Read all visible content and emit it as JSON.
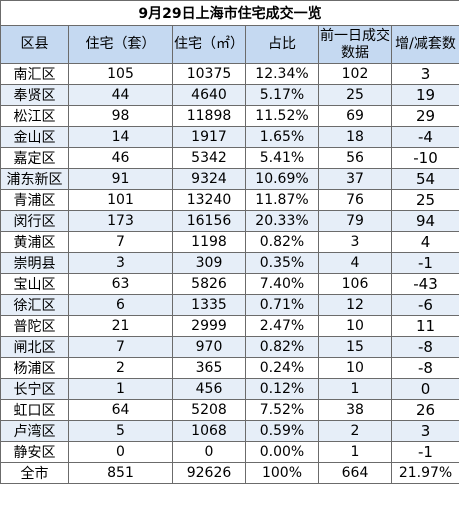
{
  "title": "9月29日上海市住宅成交一览",
  "headers": [
    "区县",
    "住宅（套）",
    "住宅（㎡）",
    "占比",
    "前一日成交数据",
    "增/减套数"
  ],
  "rows": [
    [
      "南汇区",
      "105",
      "10375",
      "12.34%",
      "102",
      "3"
    ],
    [
      "奉贤区",
      "44",
      "4640",
      "5.17%",
      "25",
      "19"
    ],
    [
      "松江区",
      "98",
      "11898",
      "11.52%",
      "69",
      "29"
    ],
    [
      "金山区",
      "14",
      "1917",
      "1.65%",
      "18",
      "-4"
    ],
    [
      "嘉定区",
      "46",
      "5342",
      "5.41%",
      "56",
      "-10"
    ],
    [
      "浦东新区",
      "91",
      "9324",
      "10.69%",
      "37",
      "54"
    ],
    [
      "青浦区",
      "101",
      "13240",
      "11.87%",
      "76",
      "25"
    ],
    [
      "闵行区",
      "173",
      "16156",
      "20.33%",
      "79",
      "94"
    ],
    [
      "黄浦区",
      "7",
      "1198",
      "0.82%",
      "3",
      "4"
    ],
    [
      "崇明县",
      "3",
      "309",
      "0.35%",
      "4",
      "-1"
    ],
    [
      "宝山区",
      "63",
      "5826",
      "7.40%",
      "106",
      "-43"
    ],
    [
      "徐汇区",
      "6",
      "1335",
      "0.71%",
      "12",
      "-6"
    ],
    [
      "普陀区",
      "21",
      "2999",
      "2.47%",
      "10",
      "11"
    ],
    [
      "闸北区",
      "7",
      "970",
      "0.82%",
      "15",
      "-8"
    ],
    [
      "杨浦区",
      "2",
      "365",
      "0.24%",
      "10",
      "-8"
    ],
    [
      "长宁区",
      "1",
      "456",
      "0.12%",
      "1",
      "0"
    ],
    [
      "虹口区",
      "64",
      "5208",
      "7.52%",
      "38",
      "26"
    ],
    [
      "卢湾区",
      "5",
      "1068",
      "0.59%",
      "2",
      "3"
    ],
    [
      "静安区",
      "0",
      "0",
      "0.00%",
      "1",
      "-1"
    ]
  ],
  "total": [
    "全市",
    "851",
    "92626",
    "100%",
    "664",
    "21.97%"
  ],
  "colors": {
    "header_bg": "#c5d9f1",
    "stripe_bg": "#e6eef8",
    "border": "#6b6b6b"
  }
}
